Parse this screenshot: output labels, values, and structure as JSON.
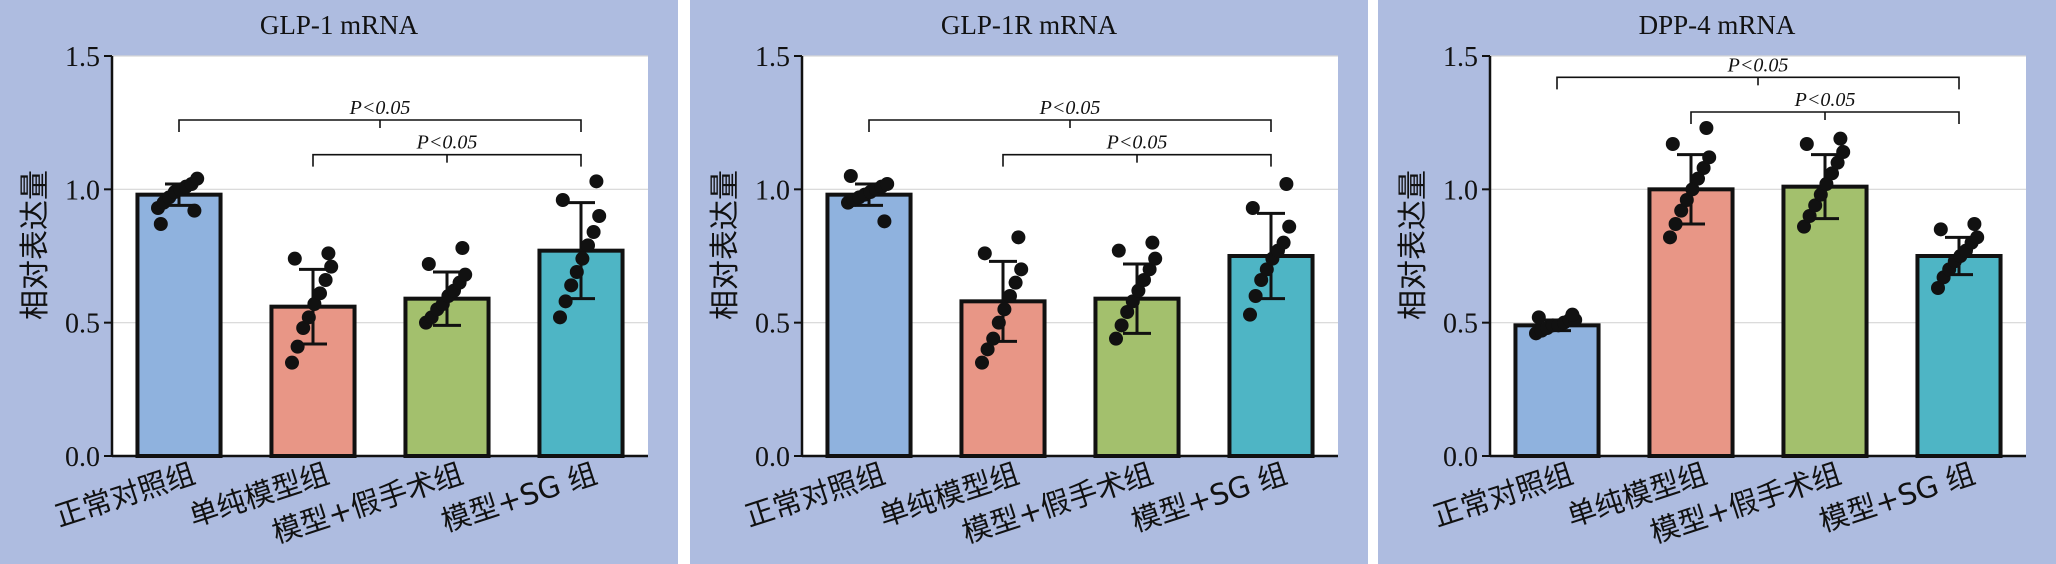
{
  "colors": {
    "panel_bg": "#aebce0",
    "plot_bg": "#ffffff",
    "bars": [
      "#8fb2de",
      "#e89686",
      "#a3c06d",
      "#4eb5c5"
    ],
    "dots": "#111111"
  },
  "chart_data": [
    {
      "type": "bar",
      "title": "GLP-1 mRNA",
      "ylabel": "相对表达量",
      "categories": [
        "正常对照组",
        "单纯模型组",
        "模型+假手术组",
        "模型+SG 组"
      ],
      "values": [
        0.98,
        0.56,
        0.59,
        0.77
      ],
      "errors": [
        0.04,
        0.14,
        0.1,
        0.18
      ],
      "points": [
        [
          0.93,
          0.95,
          0.97,
          0.99,
          1.0,
          1.01,
          1.02,
          1.04,
          0.87,
          0.92
        ],
        [
          0.35,
          0.41,
          0.48,
          0.52,
          0.57,
          0.61,
          0.66,
          0.71,
          0.74,
          0.76
        ],
        [
          0.5,
          0.52,
          0.55,
          0.57,
          0.6,
          0.62,
          0.65,
          0.68,
          0.72,
          0.78
        ],
        [
          0.52,
          0.58,
          0.64,
          0.69,
          0.74,
          0.79,
          0.84,
          0.9,
          0.96,
          1.03
        ]
      ],
      "ylim": [
        0,
        1.5
      ],
      "yticks": [
        "0.0",
        "0.5",
        "1.0",
        "1.5"
      ],
      "grid": true,
      "annotations": [
        {
          "from": 0,
          "to": 3,
          "y": 1.26,
          "label": "P<0.05"
        },
        {
          "from": 1,
          "to": 3,
          "y": 1.13,
          "label": "P<0.05"
        }
      ]
    },
    {
      "type": "bar",
      "title": "GLP-1R mRNA",
      "ylabel": "相对表达量",
      "categories": [
        "正常对照组",
        "单纯模型组",
        "模型+假手术组",
        "模型+SG 组"
      ],
      "values": [
        0.98,
        0.58,
        0.59,
        0.75
      ],
      "errors": [
        0.04,
        0.15,
        0.13,
        0.16
      ],
      "points": [
        [
          0.95,
          0.96,
          0.97,
          0.98,
          0.99,
          1.0,
          1.01,
          1.02,
          1.05,
          0.88
        ],
        [
          0.35,
          0.4,
          0.44,
          0.5,
          0.55,
          0.6,
          0.65,
          0.7,
          0.76,
          0.82
        ],
        [
          0.44,
          0.49,
          0.54,
          0.58,
          0.62,
          0.66,
          0.7,
          0.74,
          0.77,
          0.8
        ],
        [
          0.53,
          0.6,
          0.66,
          0.7,
          0.74,
          0.77,
          0.8,
          0.86,
          0.93,
          1.02
        ]
      ],
      "ylim": [
        0,
        1.5
      ],
      "yticks": [
        "0.0",
        "0.5",
        "1.0",
        "1.5"
      ],
      "grid": true,
      "annotations": [
        {
          "from": 0,
          "to": 3,
          "y": 1.26,
          "label": "P<0.05"
        },
        {
          "from": 1,
          "to": 3,
          "y": 1.13,
          "label": "P<0.05"
        }
      ]
    },
    {
      "type": "bar",
      "title": "DPP-4 mRNA",
      "ylabel": "相对表达量",
      "categories": [
        "正常对照组",
        "单纯模型组",
        "模型+假手术组",
        "模型+SG 组"
      ],
      "values": [
        0.49,
        1.0,
        1.01,
        0.75
      ],
      "errors": [
        0.02,
        0.13,
        0.12,
        0.07
      ],
      "points": [
        [
          0.46,
          0.47,
          0.48,
          0.49,
          0.49,
          0.5,
          0.51,
          0.51,
          0.52,
          0.53
        ],
        [
          0.82,
          0.87,
          0.92,
          0.96,
          1.0,
          1.04,
          1.08,
          1.12,
          1.17,
          1.23
        ],
        [
          0.86,
          0.9,
          0.94,
          0.98,
          1.02,
          1.06,
          1.1,
          1.14,
          1.17,
          1.19
        ],
        [
          0.63,
          0.67,
          0.7,
          0.73,
          0.75,
          0.77,
          0.8,
          0.82,
          0.85,
          0.87
        ]
      ],
      "ylim": [
        0,
        1.5
      ],
      "yticks": [
        "0.0",
        "0.5",
        "1.0",
        "1.5"
      ],
      "grid": true,
      "annotations": [
        {
          "from": 0,
          "to": 3,
          "y": 1.42,
          "label": "P<0.05"
        },
        {
          "from": 1,
          "to": 3,
          "y": 1.29,
          "label": "P<0.05"
        }
      ]
    }
  ]
}
